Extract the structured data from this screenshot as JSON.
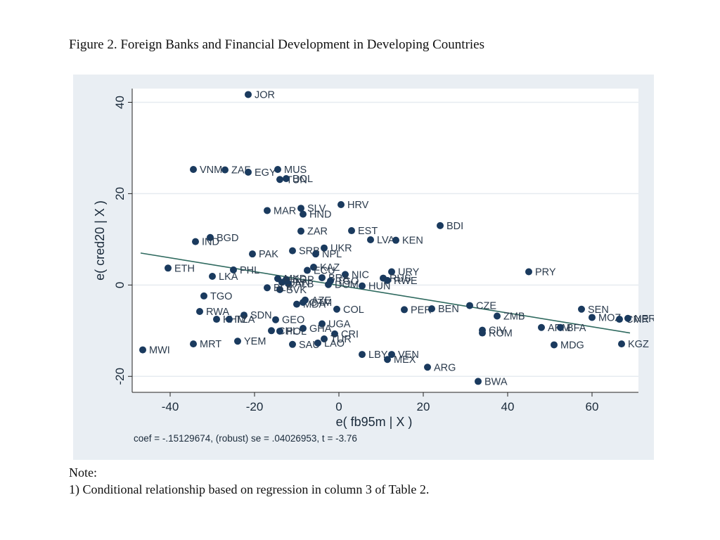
{
  "figure_title": "Figure 2. Foreign Banks and Financial Development in Developing Countries",
  "note": {
    "label": "Note:",
    "text": "1) Conditional relationship based on regression in column 3 of Table 2."
  },
  "colors": {
    "panel_bg": "#e9eef3",
    "plot_bg": "#ffffff",
    "marker": "#1a3a5e",
    "fit_line": "#2f6a5f",
    "grid": "#e6ebf0",
    "text": "#1a2a3a"
  },
  "chart_data": {
    "type": "scatter",
    "title": "",
    "xlabel": "e( fb95m | X )",
    "ylabel": "e( cred20 | X )",
    "xlim": [
      -49,
      71
    ],
    "ylim": [
      -23.5,
      43
    ],
    "xticks": [
      -40,
      -20,
      0,
      20,
      40,
      60
    ],
    "yticks": [
      -20,
      0,
      20,
      40
    ],
    "grid": "horizontal",
    "fit_line": {
      "x": [
        -47,
        69
      ],
      "y": [
        7,
        -10.5
      ]
    },
    "caption": "coef = -.15129674, (robust) se = .04026953, t = -3.76",
    "points": [
      {
        "label": "JOR",
        "x": -21.5,
        "y": 41.7
      },
      {
        "label": "VNM",
        "x": -34.5,
        "y": 25.3
      },
      {
        "label": "ZAF",
        "x": -27,
        "y": 25.2
      },
      {
        "label": "EGY",
        "x": -21.5,
        "y": 24.7
      },
      {
        "label": "MUS",
        "x": -14.5,
        "y": 25.3
      },
      {
        "label": "TUN",
        "x": -14,
        "y": 23.1
      },
      {
        "label": "BOL",
        "x": -12.5,
        "y": 23.3
      },
      {
        "label": "HRV",
        "x": 0.5,
        "y": 17.6
      },
      {
        "label": "MAR",
        "x": -17,
        "y": 16.3
      },
      {
        "label": "SLV",
        "x": -9,
        "y": 16.8
      },
      {
        "label": "HND",
        "x": -8.5,
        "y": 15.5
      },
      {
        "label": "BDI",
        "x": 24,
        "y": 13
      },
      {
        "label": "ZAR",
        "x": -9,
        "y": 11.8
      },
      {
        "label": "EST",
        "x": 3,
        "y": 11.9
      },
      {
        "label": "LVA",
        "x": 7.5,
        "y": 9.9
      },
      {
        "label": "KEN",
        "x": 13.5,
        "y": 9.8
      },
      {
        "label": "BGD",
        "x": -30.5,
        "y": 10.4
      },
      {
        "label": "IND",
        "x": -34,
        "y": 9.5
      },
      {
        "label": "PAK",
        "x": -20.5,
        "y": 6.8
      },
      {
        "label": "SRB",
        "x": -11,
        "y": 7.5
      },
      {
        "label": "UKR",
        "x": -3.5,
        "y": 8.1
      },
      {
        "label": "NPL",
        "x": -5.5,
        "y": 6.8
      },
      {
        "label": "ETH",
        "x": -40.5,
        "y": 3.7
      },
      {
        "label": "PHL",
        "x": -25,
        "y": 3.3
      },
      {
        "label": "KAZ",
        "x": -6,
        "y": 3.9
      },
      {
        "label": "ECU",
        "x": -7.5,
        "y": 3.2
      },
      {
        "label": "URY",
        "x": 12.5,
        "y": 2.9
      },
      {
        "label": "PRY",
        "x": 45,
        "y": 2.9
      },
      {
        "label": "LKA",
        "x": -30,
        "y": 1.9
      },
      {
        "label": "NIC",
        "x": 1.5,
        "y": 2.3
      },
      {
        "label": "BRA",
        "x": -4,
        "y": 1.6
      },
      {
        "label": "RUS",
        "x": 10.5,
        "y": 1.5
      },
      {
        "label": "RWE",
        "x": 11.5,
        "y": 1.0
      },
      {
        "label": "SGP",
        "x": -12.5,
        "y": 1.2
      },
      {
        "label": "MKD",
        "x": -14.5,
        "y": 1.4
      },
      {
        "label": "BRN",
        "x": -13.5,
        "y": 0.6
      },
      {
        "label": "ALB",
        "x": -12,
        "y": 0.3
      },
      {
        "label": "TGO",
        "x": -2,
        "y": 0.9
      },
      {
        "label": "DOM",
        "x": -2.5,
        "y": 0.1
      },
      {
        "label": "HUN",
        "x": 5.5,
        "y": -0.2
      },
      {
        "label": "SVK",
        "x": -14,
        "y": -1
      },
      {
        "label": "BLR",
        "x": -17,
        "y": -0.6
      },
      {
        "label": "TGO",
        "x": -32,
        "y": -2.4
      },
      {
        "label": "AZE",
        "x": -8,
        "y": -3.3
      },
      {
        "label": "MDA",
        "x": -10,
        "y": -4.2
      },
      {
        "label": "GTM",
        "x": -8.5,
        "y": -3.8
      },
      {
        "label": "COL",
        "x": -0.5,
        "y": -5.3
      },
      {
        "label": "PER",
        "x": 15.5,
        "y": -5.4
      },
      {
        "label": "BEN",
        "x": 22,
        "y": -5.2
      },
      {
        "label": "CZE",
        "x": 31,
        "y": -4.5
      },
      {
        "label": "SEN",
        "x": 57.5,
        "y": -5.3
      },
      {
        "label": "RWA",
        "x": -33,
        "y": -5.8
      },
      {
        "label": "SDN",
        "x": -22.5,
        "y": -6.6
      },
      {
        "label": "KHM",
        "x": -29,
        "y": -7.5
      },
      {
        "label": "TZA",
        "x": -26,
        "y": -7.5
      },
      {
        "label": "GEO",
        "x": -15,
        "y": -7.6
      },
      {
        "label": "ZMB",
        "x": 37.5,
        "y": -6.8
      },
      {
        "label": "MOZ",
        "x": 60,
        "y": -7.1
      },
      {
        "label": "CMR",
        "x": 66.5,
        "y": -7.5
      },
      {
        "label": "NER",
        "x": 68.5,
        "y": -7.3
      },
      {
        "label": "UGA",
        "x": -4,
        "y": -8.5
      },
      {
        "label": "GHA",
        "x": -8.5,
        "y": -9.5
      },
      {
        "label": "ARM",
        "x": 48,
        "y": -9.3
      },
      {
        "label": "BFA",
        "x": 52.5,
        "y": -9.3
      },
      {
        "label": "CHL",
        "x": -16,
        "y": -10
      },
      {
        "label": "POL",
        "x": -14,
        "y": -10.1
      },
      {
        "label": "CIV",
        "x": 34,
        "y": -9.9
      },
      {
        "label": "ROM",
        "x": 34,
        "y": -10.5
      },
      {
        "label": "CRI",
        "x": -1,
        "y": -10.7
      },
      {
        "label": "TUR",
        "x": -3.5,
        "y": -11.8
      },
      {
        "label": "SAU",
        "x": -11,
        "y": -13
      },
      {
        "label": "LAO",
        "x": -5,
        "y": -12.7
      },
      {
        "label": "MWI",
        "x": -46.5,
        "y": -14.2
      },
      {
        "label": "MRT",
        "x": -34.5,
        "y": -12.9
      },
      {
        "label": "YEM",
        "x": -24,
        "y": -12.3
      },
      {
        "label": "MDG",
        "x": 51,
        "y": -13.1
      },
      {
        "label": "KGZ",
        "x": 67,
        "y": -12.9
      },
      {
        "label": "LBY",
        "x": 5.5,
        "y": -15.2
      },
      {
        "label": "VEN",
        "x": 12.5,
        "y": -15.2
      },
      {
        "label": "MEX",
        "x": 11.5,
        "y": -16.3
      },
      {
        "label": "ARG",
        "x": 21,
        "y": -18
      },
      {
        "label": "BWA",
        "x": 33,
        "y": -21.1
      }
    ]
  }
}
